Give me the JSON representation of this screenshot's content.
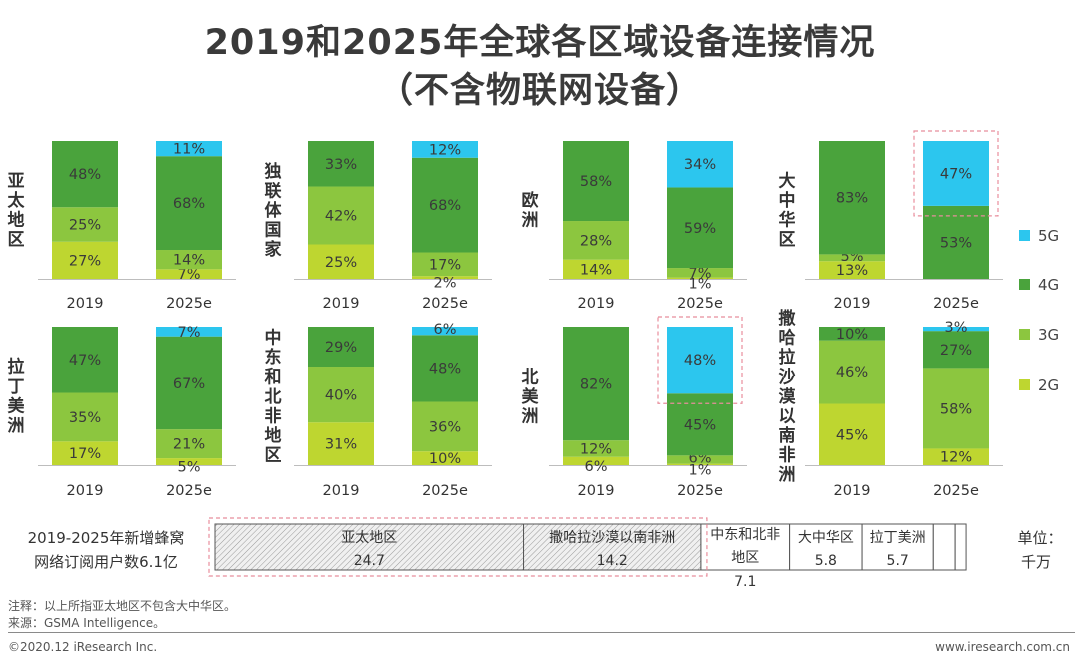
{
  "title_line1": "2019和2025年全球各区域设备连接情况",
  "title_line2": "（不含物联网设备）",
  "colors": {
    "5G": "#2cc6ee",
    "4G": "#4aa33c",
    "3G": "#8cc63f",
    "2G": "#bed630"
  },
  "chart_data": [
    {
      "type": "bar",
      "stacked": true,
      "region": "亚太地区",
      "categories": [
        "2019",
        "2025e"
      ],
      "series": [
        {
          "name": "2G",
          "values": [
            27,
            7
          ]
        },
        {
          "name": "3G",
          "values": [
            25,
            14
          ]
        },
        {
          "name": "4G",
          "values": [
            48,
            68
          ]
        },
        {
          "name": "5G",
          "values": [
            0,
            11
          ]
        }
      ]
    },
    {
      "type": "bar",
      "stacked": true,
      "region": "独联体国家",
      "categories": [
        "2019",
        "2025e"
      ],
      "series": [
        {
          "name": "2G",
          "values": [
            25,
            2
          ]
        },
        {
          "name": "3G",
          "values": [
            42,
            17
          ]
        },
        {
          "name": "4G",
          "values": [
            33,
            68
          ]
        },
        {
          "name": "5G",
          "values": [
            0,
            12
          ]
        }
      ]
    },
    {
      "type": "bar",
      "stacked": true,
      "region": "欧洲",
      "categories": [
        "2019",
        "2025e"
      ],
      "series": [
        {
          "name": "2G",
          "values": [
            14,
            1
          ]
        },
        {
          "name": "3G",
          "values": [
            28,
            7
          ]
        },
        {
          "name": "4G",
          "values": [
            58,
            59
          ]
        },
        {
          "name": "5G",
          "values": [
            0,
            34
          ]
        }
      ]
    },
    {
      "type": "bar",
      "stacked": true,
      "region": "大中华区",
      "categories": [
        "2019",
        "2025e"
      ],
      "highlight": "2025e",
      "series": [
        {
          "name": "2G",
          "values": [
            13,
            0
          ]
        },
        {
          "name": "3G",
          "values": [
            5,
            0
          ]
        },
        {
          "name": "4G",
          "values": [
            83,
            53
          ]
        },
        {
          "name": "5G",
          "values": [
            0,
            47
          ]
        }
      ]
    },
    {
      "type": "bar",
      "stacked": true,
      "region": "拉丁美洲",
      "categories": [
        "2019",
        "2025e"
      ],
      "series": [
        {
          "name": "2G",
          "values": [
            17,
            5
          ]
        },
        {
          "name": "3G",
          "values": [
            35,
            21
          ]
        },
        {
          "name": "4G",
          "values": [
            47,
            67
          ]
        },
        {
          "name": "5G",
          "values": [
            0,
            7
          ]
        }
      ]
    },
    {
      "type": "bar",
      "stacked": true,
      "region": "中东和北非地区",
      "categories": [
        "2019",
        "2025e"
      ],
      "series": [
        {
          "name": "2G",
          "values": [
            31,
            10
          ]
        },
        {
          "name": "3G",
          "values": [
            40,
            36
          ]
        },
        {
          "name": "4G",
          "values": [
            29,
            48
          ]
        },
        {
          "name": "5G",
          "values": [
            0,
            6
          ]
        }
      ]
    },
    {
      "type": "bar",
      "stacked": true,
      "region": "北美洲",
      "categories": [
        "2019",
        "2025e"
      ],
      "highlight": "2025e",
      "series": [
        {
          "name": "2G",
          "values": [
            6,
            1
          ]
        },
        {
          "name": "3G",
          "values": [
            12,
            6
          ]
        },
        {
          "name": "4G",
          "values": [
            82,
            45
          ]
        },
        {
          "name": "5G",
          "values": [
            0,
            48
          ]
        }
      ]
    },
    {
      "type": "bar",
      "stacked": true,
      "region": "撒哈拉沙漠以南非洲",
      "categories": [
        "2019",
        "2025e"
      ],
      "series": [
        {
          "name": "2G",
          "values": [
            45,
            12
          ]
        },
        {
          "name": "3G",
          "values": [
            46,
            58
          ]
        },
        {
          "name": "4G",
          "values": [
            10,
            27
          ]
        },
        {
          "name": "5G",
          "values": [
            0,
            3
          ]
        }
      ]
    },
    {
      "type": "bar",
      "stacked": true,
      "horizontal": true,
      "title": "2019-2025年新增蜂窝网络订阅用户数6.1亿",
      "unit": "单位：千万",
      "categories": [
        "亚太地区",
        "撒哈拉沙漠以南非洲",
        "中东和北非地区",
        "大中华区",
        "拉丁美洲"
      ],
      "values": [
        24.7,
        14.2,
        7.1,
        5.8,
        5.7
      ]
    }
  ],
  "legend": [
    "5G",
    "4G",
    "3G",
    "2G"
  ],
  "regions_vertical": [
    "亚太地区",
    "独联体国家",
    "欧洲",
    "大中华区",
    "拉丁美洲",
    "中东和北非地区",
    "北美洲",
    "撒哈拉沙漠以南非洲"
  ],
  "summary_label_line1": "2019-2025年新增蜂窝",
  "summary_label_line2": "网络订阅用户数6.1亿",
  "unit_line1": "单位：",
  "unit_line2": "千万",
  "note": "注释：以上所指亚太地区不包含大中华区。",
  "source": "来源：GSMA Intelligence。",
  "copyright": "©2020.12 iResearch Inc.",
  "website": "www.iresearch.com.cn"
}
